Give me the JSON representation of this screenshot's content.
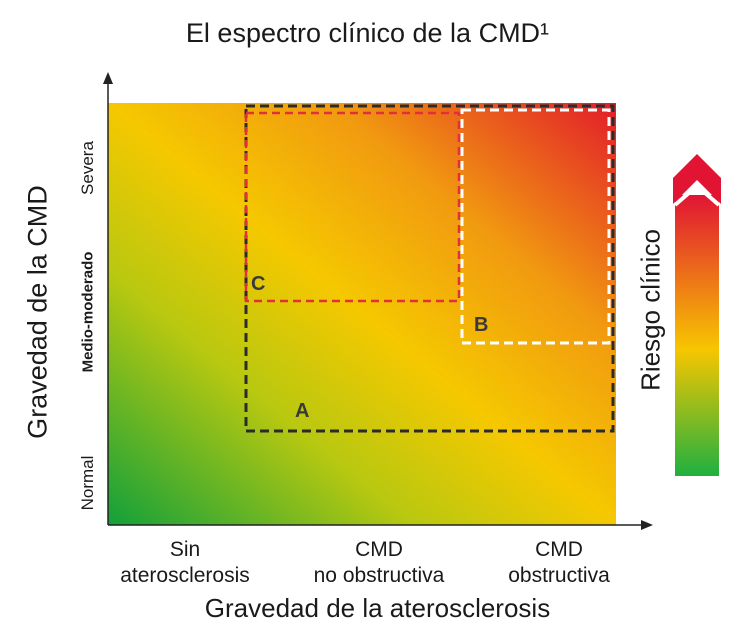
{
  "title": "El espectro clínico de la CMD¹",
  "y_axis": {
    "label": "Gravedad de la CMD",
    "ticks": [
      "Normal",
      "Medio-moderado",
      "Severa"
    ]
  },
  "x_axis": {
    "label": "Gravedad de la aterosclerosis",
    "ticks": [
      {
        "line1": "Sin",
        "line2": "aterosclerosis"
      },
      {
        "line1": "CMD",
        "line2": "no obstructiva"
      },
      {
        "line1": "CMD",
        "line2": "obstructiva"
      }
    ]
  },
  "regions": [
    {
      "id": "A",
      "border_color": "#2b2b2b"
    },
    {
      "id": "B",
      "border_color": "#ffffff"
    },
    {
      "id": "C",
      "border_color": "#e0303a"
    }
  ],
  "risk_scale": {
    "label": "Riesgo clínico",
    "colors": [
      "#1fb040",
      "#f7c600",
      "#e11434"
    ]
  },
  "gradient_colors": {
    "low": "#12a03a",
    "mid": "#f5c800",
    "high": "#e21c2a"
  }
}
